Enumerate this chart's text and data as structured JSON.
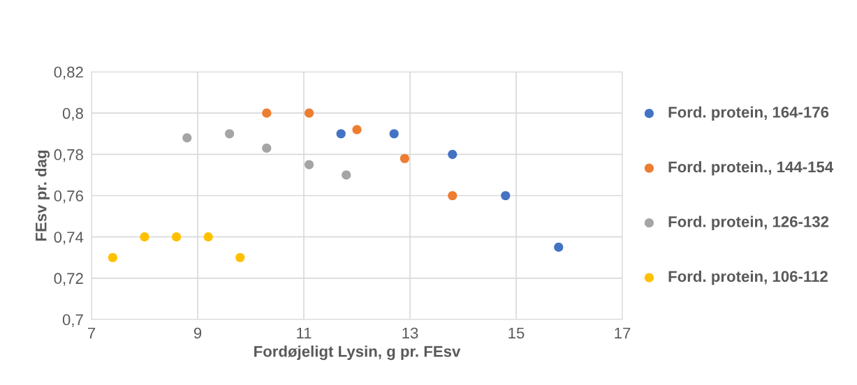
{
  "chart_data": {
    "type": "scatter",
    "xlabel": "Fordøjeligt Lysin, g pr. FEsv",
    "ylabel": "FEsv pr. dag",
    "series": [
      {
        "name": "Ford. protein, 164-176",
        "color": "#4472c4",
        "x": [
          11.7,
          12.7,
          13.8,
          14.8,
          15.8
        ],
        "values": [
          0.79,
          0.79,
          0.78,
          0.76,
          0.735
        ]
      },
      {
        "name": "Ford. protein., 144-154",
        "color": "#ed7d31",
        "x": [
          10.3,
          11.1,
          12.0,
          12.9,
          13.8
        ],
        "values": [
          0.8,
          0.8,
          0.792,
          0.778,
          0.76
        ]
      },
      {
        "name": "Ford. protein, 126-132",
        "color": "#a5a5a5",
        "x": [
          8.8,
          9.6,
          10.3,
          11.1,
          11.8
        ],
        "values": [
          0.788,
          0.79,
          0.783,
          0.775,
          0.77
        ]
      },
      {
        "name": "Ford. protein, 106-112",
        "color": "#ffc000",
        "x": [
          7.4,
          8.0,
          8.6,
          9.2,
          9.8
        ],
        "values": [
          0.73,
          0.74,
          0.74,
          0.74,
          0.73
        ]
      }
    ],
    "xlim": [
      7,
      17
    ],
    "xticks": [
      7,
      9,
      11,
      13,
      15,
      17
    ],
    "ylim": [
      0.7,
      0.82
    ],
    "yticks": [
      {
        "value": 0.7,
        "label": "0,7"
      },
      {
        "value": 0.72,
        "label": "0,72"
      },
      {
        "value": 0.74,
        "label": "0,74"
      },
      {
        "value": 0.76,
        "label": "0,76"
      },
      {
        "value": 0.78,
        "label": "0,78"
      },
      {
        "value": 0.8,
        "label": "0,8"
      },
      {
        "value": 0.82,
        "label": "0,82"
      }
    ],
    "grid": true,
    "legend": "right",
    "marker": "circle"
  }
}
